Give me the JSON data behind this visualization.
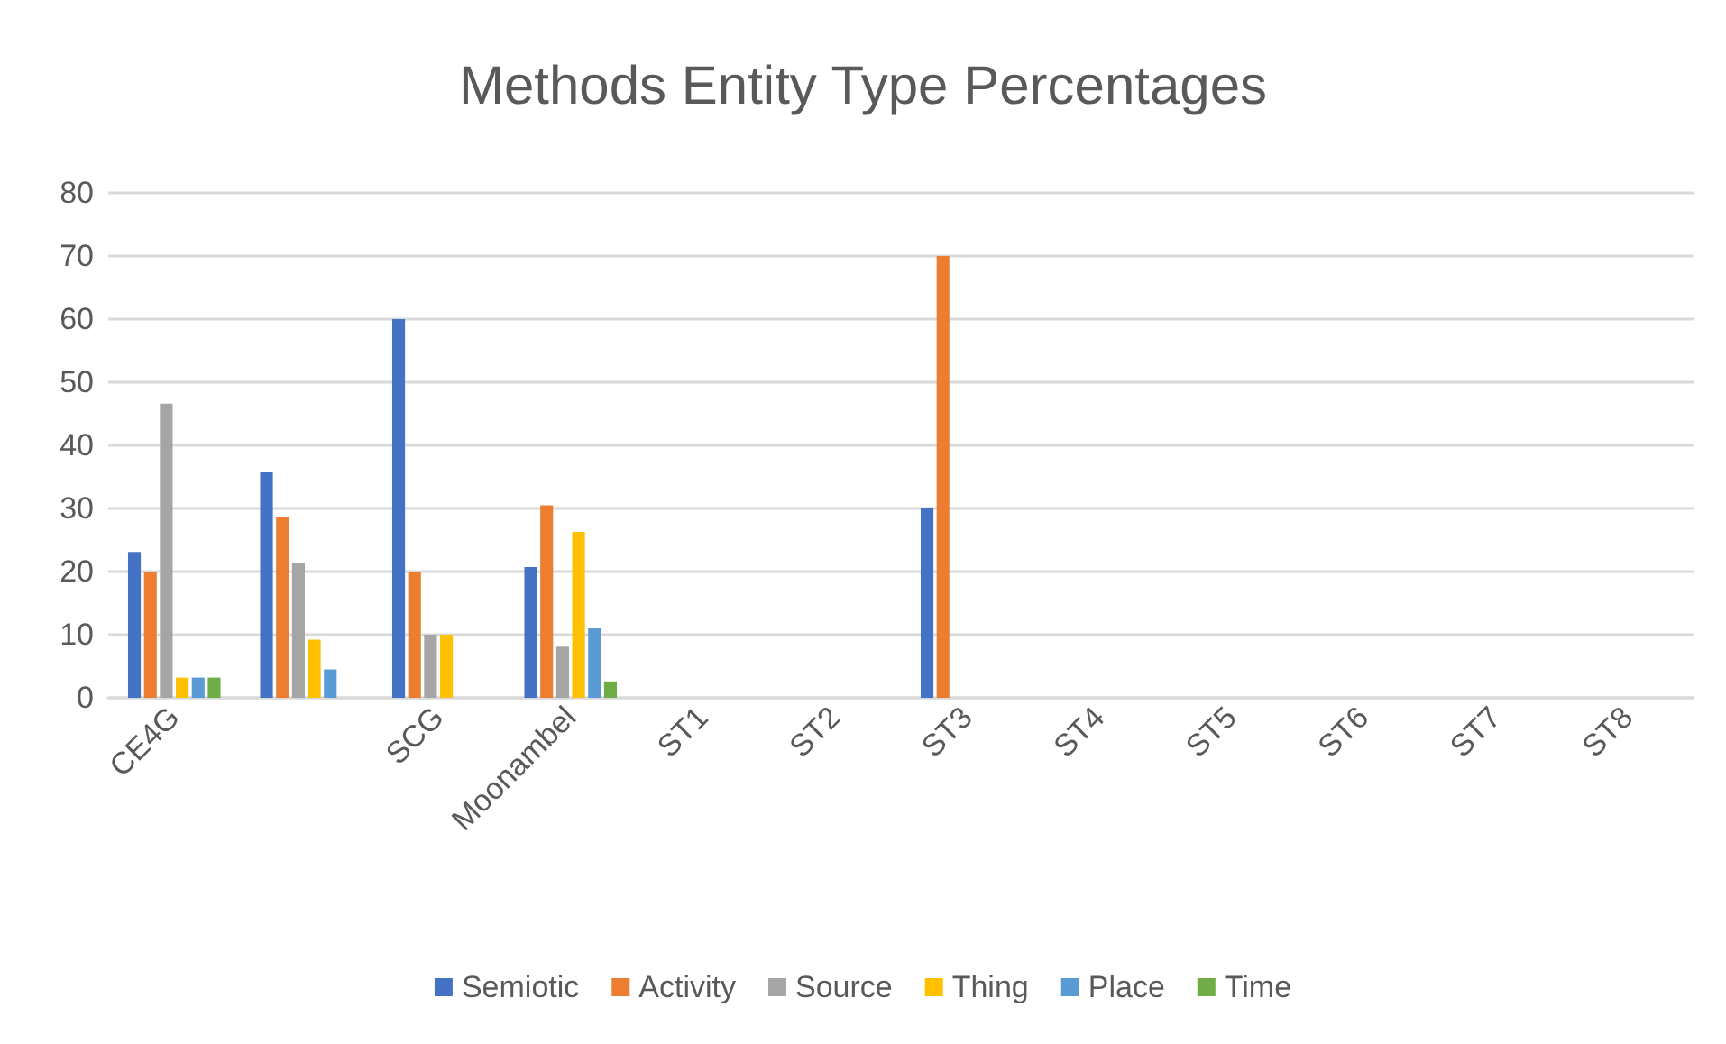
{
  "chart_data": {
    "type": "bar",
    "title": "Methods Entity Type Percentages",
    "categories": [
      "CE4G",
      null,
      "SCG",
      "Moonambel",
      "ST1",
      "ST2",
      "ST3",
      "ST4",
      "ST5",
      "ST6",
      "ST7",
      "ST8"
    ],
    "series": [
      {
        "name": "Semiotic",
        "color": "#4472c4",
        "values": [
          23.1,
          35.7,
          60,
          20.7,
          0,
          0,
          30,
          0,
          0,
          0,
          0,
          0
        ]
      },
      {
        "name": "Activity",
        "color": "#ed7d31",
        "values": [
          20,
          28.6,
          20,
          30.5,
          0,
          0,
          70,
          0,
          0,
          0,
          0,
          0
        ]
      },
      {
        "name": "Source",
        "color": "#a5a5a5",
        "values": [
          46.6,
          21.3,
          10,
          8.1,
          0,
          0,
          0,
          0,
          0,
          0,
          0,
          0
        ]
      },
      {
        "name": "Thing",
        "color": "#ffc000",
        "values": [
          3.2,
          9.2,
          10,
          26.3,
          0,
          0,
          0,
          0,
          0,
          0,
          0,
          0
        ]
      },
      {
        "name": "Place",
        "color": "#5b9bd5",
        "values": [
          3.2,
          4.5,
          0,
          11,
          0,
          0,
          0,
          0,
          0,
          0,
          0,
          0
        ]
      },
      {
        "name": "Time",
        "color": "#70ad47",
        "values": [
          3.2,
          0,
          0,
          2.6,
          0,
          0,
          0,
          0,
          0,
          0,
          0,
          0
        ]
      }
    ],
    "ylim": [
      0,
      80
    ],
    "yticks": [
      0,
      10,
      20,
      30,
      40,
      50,
      60,
      70,
      80
    ],
    "grid": "y",
    "legend": "bottom"
  }
}
